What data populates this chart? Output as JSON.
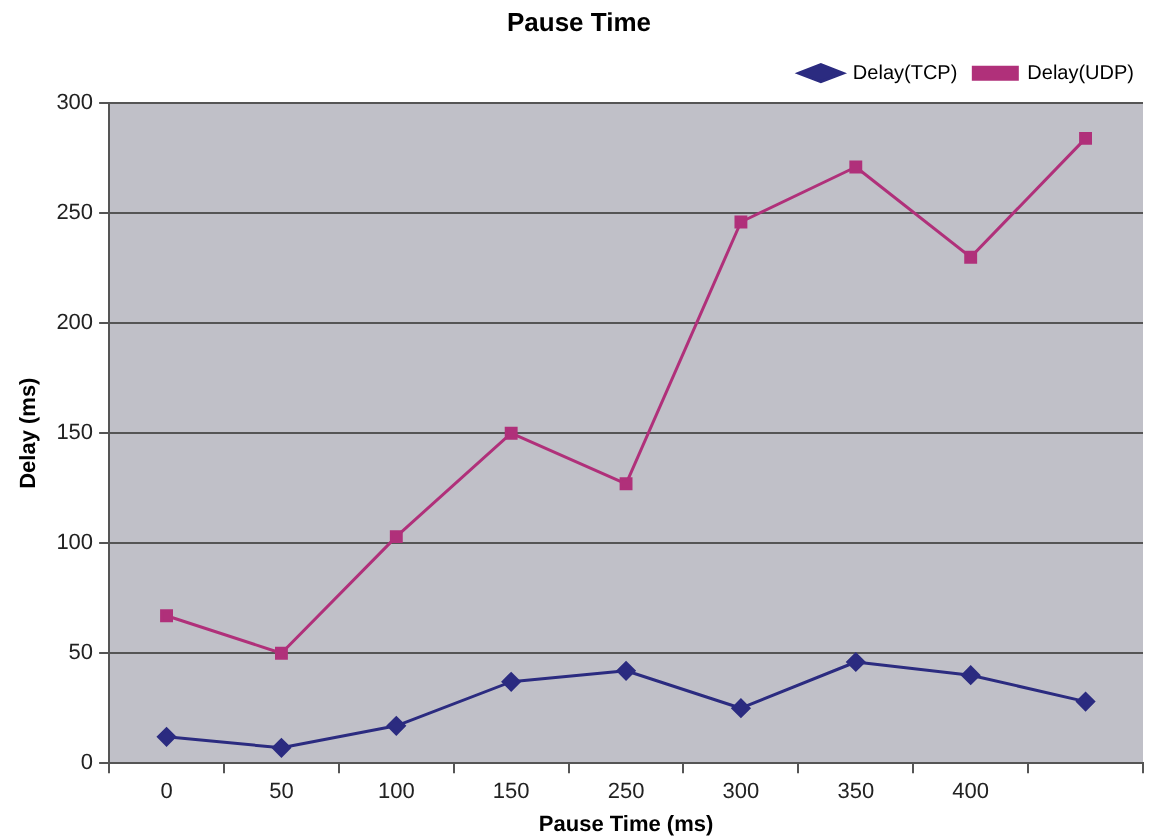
{
  "chart_data": {
    "type": "line",
    "title": "Pause Time",
    "xlabel": "Pause Time (ms)",
    "ylabel": "Delay (ms)",
    "categories": [
      "0",
      "50",
      "100",
      "150",
      "250",
      "300",
      "350",
      "400",
      null
    ],
    "series": [
      {
        "name": "Delay(TCP)",
        "color": "#2b2b80",
        "marker": "diamond",
        "values": [
          12,
          7,
          17,
          37,
          42,
          25,
          46,
          40,
          28
        ]
      },
      {
        "name": "Delay(UDP)",
        "color": "#b0307a",
        "marker": "square",
        "values": [
          67,
          50,
          103,
          150,
          127,
          246,
          271,
          230,
          284
        ]
      }
    ],
    "ylim": [
      0,
      300
    ],
    "yticks": [
      0,
      50,
      100,
      150,
      200,
      250,
      300
    ],
    "grid": "y",
    "legend": "top right",
    "line_style": "solid"
  }
}
